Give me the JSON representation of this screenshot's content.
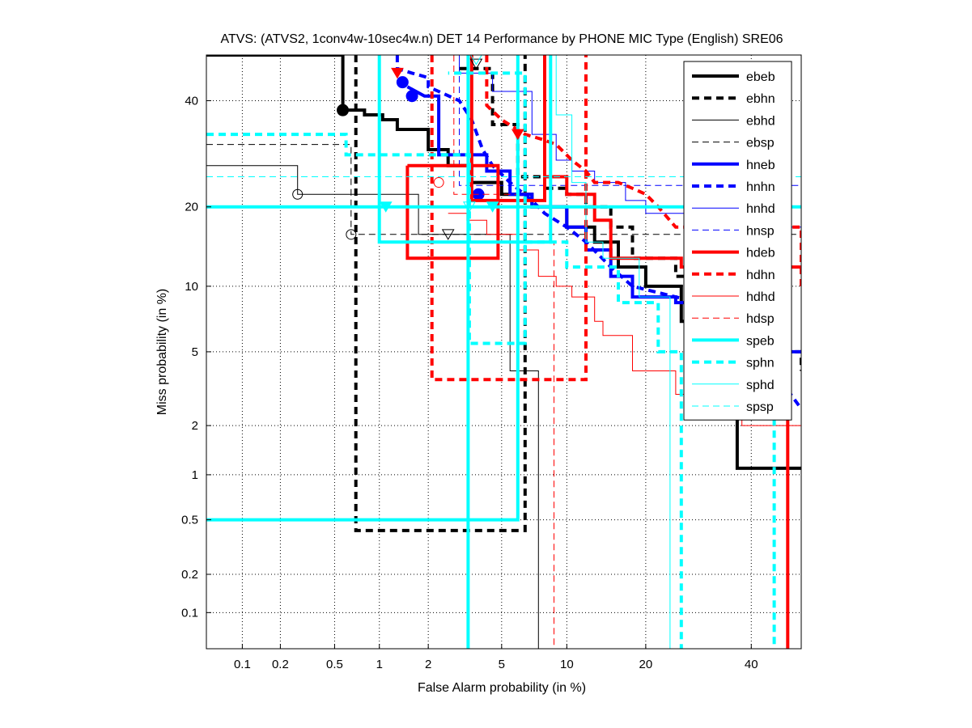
{
  "chart_data": {
    "type": "line",
    "subtype": "DET curve (probit scale)",
    "title": "ATVS: (ATVS2, 1conv4w-10sec4w.n) DET 14 Performance by PHONE MIC Type (English) SRE06",
    "xlabel": "False Alarm probability (in %)",
    "ylabel": "Miss probability (in %)",
    "x_scale": "probit",
    "y_scale": "probit",
    "xlim": [
      0.05,
      51
    ],
    "ylim": [
      0.05,
      50
    ],
    "x_ticks": [
      0.1,
      0.2,
      0.5,
      1,
      2,
      5,
      10,
      20,
      40
    ],
    "x_tick_labels": [
      "0.1",
      "0.2",
      "0.5",
      "1",
      "2",
      "5",
      "10",
      "20",
      "40"
    ],
    "y_ticks": [
      0.1,
      0.2,
      0.5,
      1,
      2,
      5,
      10,
      20,
      40
    ],
    "y_tick_labels": [
      "0.1",
      "0.2",
      "0.5",
      "1",
      "2",
      "5",
      "10",
      "20",
      "40"
    ],
    "grid": true,
    "legend_position": "top-right",
    "colors": {
      "black": "#000000",
      "blue": "#0000ff",
      "red": "#ff0000",
      "cyan": "#00ffff"
    },
    "series": [
      {
        "name": "ebeb",
        "color": "#000000",
        "style": "solid",
        "weight": "thick",
        "points": [
          [
            0.05,
            50
          ],
          [
            0.57,
            50
          ],
          [
            0.57,
            38
          ],
          [
            0.8,
            38
          ],
          [
            0.8,
            37
          ],
          [
            1.05,
            37
          ],
          [
            1.05,
            36
          ],
          [
            1.3,
            36
          ],
          [
            1.3,
            34
          ],
          [
            2.0,
            34
          ],
          [
            2.0,
            30
          ],
          [
            2.6,
            30
          ],
          [
            2.6,
            27
          ],
          [
            3.5,
            27
          ],
          [
            3.5,
            24
          ],
          [
            5,
            24
          ],
          [
            5,
            22
          ],
          [
            7,
            22
          ],
          [
            7,
            20
          ],
          [
            10,
            20
          ],
          [
            10,
            17
          ],
          [
            13,
            17
          ],
          [
            13,
            15
          ],
          [
            16,
            15
          ],
          [
            16,
            12
          ],
          [
            20,
            12
          ],
          [
            20,
            10
          ],
          [
            26,
            10
          ],
          [
            26,
            7
          ],
          [
            32,
            7
          ],
          [
            32,
            2.5
          ],
          [
            37,
            2.5
          ],
          [
            37,
            1.1
          ],
          [
            51,
            1.1
          ]
        ],
        "marker": {
          "x": 0.57,
          "y": 38,
          "shape": "circle-filled"
        }
      },
      {
        "name": "ebhn",
        "color": "#000000",
        "style": "dashed",
        "weight": "thick",
        "points": [
          [
            0.7,
            50
          ],
          [
            0.7,
            0.42
          ],
          [
            6.5,
            0.42
          ],
          [
            6.5,
            50
          ]
        ],
        "points2": [
          [
            3.0,
            47
          ],
          [
            4.5,
            47
          ],
          [
            4.5,
            35
          ],
          [
            6,
            35
          ],
          [
            6,
            25
          ],
          [
            8,
            25
          ],
          [
            8,
            23
          ],
          [
            10,
            23
          ],
          [
            10,
            22
          ],
          [
            12,
            22
          ],
          [
            12,
            20
          ],
          [
            15,
            20
          ],
          [
            15,
            17
          ],
          [
            18,
            17
          ],
          [
            18,
            13
          ],
          [
            25,
            13
          ],
          [
            25,
            11
          ],
          [
            33,
            11
          ],
          [
            33,
            5
          ],
          [
            51,
            5
          ],
          [
            51,
            4
          ]
        ]
      },
      {
        "name": "ebhd",
        "color": "#000000",
        "style": "solid",
        "weight": "thin",
        "points": [
          [
            0.05,
            27
          ],
          [
            0.27,
            27
          ],
          [
            0.27,
            22
          ],
          [
            1.75,
            22
          ],
          [
            1.75,
            16
          ],
          [
            5.5,
            16
          ],
          [
            5.5,
            4
          ],
          [
            7.5,
            4
          ],
          [
            7.5,
            0.05
          ]
        ],
        "marker": {
          "x": 0.27,
          "y": 22,
          "shape": "circle-open"
        }
      },
      {
        "name": "ebsp",
        "color": "#000000",
        "style": "dashed",
        "weight": "thin",
        "points": [
          [
            0.05,
            31
          ],
          [
            0.65,
            31
          ],
          [
            0.65,
            16
          ],
          [
            51,
            16
          ]
        ],
        "marker": {
          "x": 0.65,
          "y": 16,
          "shape": "circle-open"
        }
      },
      {
        "name": "hneb",
        "color": "#0000ff",
        "style": "solid",
        "weight": "thick",
        "points": [
          [
            1.5,
            43
          ],
          [
            1.9,
            41
          ],
          [
            2.3,
            41
          ],
          [
            2.3,
            29
          ],
          [
            4.2,
            29
          ],
          [
            4.2,
            26
          ],
          [
            5.5,
            26
          ],
          [
            5.5,
            22
          ],
          [
            7,
            22
          ],
          [
            7,
            20
          ],
          [
            10,
            20
          ],
          [
            10,
            17
          ],
          [
            12,
            17
          ],
          [
            12,
            14
          ],
          [
            15,
            14
          ],
          [
            15,
            11
          ],
          [
            18,
            11
          ],
          [
            18,
            9
          ],
          [
            25,
            9
          ],
          [
            25,
            8.5
          ],
          [
            35,
            8.5
          ],
          [
            35,
            5
          ],
          [
            51,
            5
          ]
        ],
        "marker": {
          "x": 1.6,
          "y": 41,
          "shape": "circle-filled"
        }
      },
      {
        "name": "hnhn",
        "color": "#0000ff",
        "style": "dashed",
        "weight": "thick",
        "points": [
          [
            1.3,
            50
          ],
          [
            1.3,
            47
          ],
          [
            1.6,
            46
          ],
          [
            2.0,
            45
          ],
          [
            2.0,
            43
          ],
          [
            3.0,
            40
          ],
          [
            3.5,
            36
          ],
          [
            4.0,
            30
          ],
          [
            4.5,
            27
          ],
          [
            5.5,
            24
          ],
          [
            7,
            21
          ],
          [
            8,
            19
          ],
          [
            10,
            17
          ],
          [
            12,
            15
          ],
          [
            15,
            12
          ],
          [
            18,
            10
          ],
          [
            25,
            9
          ],
          [
            35,
            8
          ],
          [
            51,
            2.5
          ]
        ],
        "marker": {
          "x": 3.8,
          "y": 22,
          "shape": "circle-filled"
        }
      },
      {
        "name": "hnhd",
        "color": "#0000ff",
        "style": "solid",
        "weight": "thin",
        "points": [
          [
            3.0,
            50
          ],
          [
            3.0,
            46
          ],
          [
            4.5,
            46
          ],
          [
            4.5,
            42
          ],
          [
            7,
            42
          ],
          [
            7,
            33
          ],
          [
            9,
            33
          ],
          [
            9,
            28
          ],
          [
            10.5,
            28
          ],
          [
            10.5,
            26
          ],
          [
            13,
            26
          ],
          [
            13,
            24
          ],
          [
            17,
            24
          ],
          [
            17,
            21
          ],
          [
            20,
            21
          ],
          [
            20,
            19
          ],
          [
            28,
            19
          ],
          [
            28,
            17
          ],
          [
            51,
            17
          ],
          [
            51,
            11
          ]
        ]
      },
      {
        "name": "hnsp",
        "color": "#0000ff",
        "style": "dashed",
        "weight": "thin",
        "points": [
          [
            3.0,
            50
          ],
          [
            3.0,
            23.5
          ],
          [
            51,
            23.5
          ]
        ]
      },
      {
        "name": "hdeb",
        "color": "#ff0000",
        "style": "solid",
        "weight": "thick",
        "points": [
          [
            1.5,
            27
          ],
          [
            1.5,
            13
          ],
          [
            4.8,
            13
          ],
          [
            4.8,
            27
          ],
          [
            1.5,
            27
          ]
        ],
        "points2": [
          [
            3.5,
            50
          ],
          [
            3.5,
            21
          ],
          [
            8,
            21
          ],
          [
            8,
            50
          ]
        ],
        "points3": [
          [
            8,
            28
          ],
          [
            8,
            25
          ],
          [
            10,
            25
          ],
          [
            10,
            22
          ],
          [
            13,
            22
          ],
          [
            13,
            18
          ],
          [
            15,
            18
          ],
          [
            15,
            13
          ],
          [
            26,
            13
          ],
          [
            26,
            12
          ],
          [
            51,
            12
          ],
          [
            48,
            12
          ],
          [
            48,
            0.05
          ]
        ]
      },
      {
        "name": "hdhn",
        "color": "#ff0000",
        "style": "dashed",
        "weight": "thick",
        "points": [
          [
            2.1,
            50
          ],
          [
            2.1,
            3.6
          ],
          [
            12,
            3.6
          ],
          [
            12,
            50
          ]
        ],
        "points2": [
          [
            4.2,
            50
          ],
          [
            4.2,
            39
          ],
          [
            5,
            36
          ],
          [
            6.5,
            33
          ],
          [
            7.8,
            32
          ],
          [
            9,
            31
          ],
          [
            10.5,
            28
          ],
          [
            12,
            26
          ],
          [
            13,
            24
          ],
          [
            16,
            24
          ],
          [
            18,
            23
          ],
          [
            20,
            22
          ],
          [
            22,
            20
          ],
          [
            25,
            17
          ],
          [
            51,
            17
          ],
          [
            51,
            10
          ]
        ],
        "marker": {
          "x": 1.3,
          "y": 46,
          "shape": "triangle-filled"
        }
      },
      {
        "name": "hdhd",
        "color": "#ff0000",
        "style": "solid",
        "weight": "thin",
        "points": [
          [
            2.6,
            19
          ],
          [
            3.3,
            19
          ],
          [
            3.3,
            18
          ],
          [
            4.2,
            18
          ],
          [
            4.2,
            16
          ],
          [
            6,
            16
          ],
          [
            6,
            14
          ],
          [
            7.5,
            14
          ],
          [
            7.5,
            11
          ],
          [
            9,
            11
          ],
          [
            9,
            10
          ],
          [
            10.5,
            10
          ],
          [
            10.5,
            9
          ],
          [
            13,
            9
          ],
          [
            13,
            7
          ],
          [
            14,
            7
          ],
          [
            14,
            6
          ],
          [
            18,
            6
          ],
          [
            18,
            4
          ],
          [
            25,
            4
          ],
          [
            25,
            3
          ],
          [
            38,
            3
          ],
          [
            38,
            2
          ],
          [
            51,
            2
          ]
        ]
      },
      {
        "name": "hdsp",
        "color": "#ff0000",
        "style": "dashed",
        "weight": "thin",
        "points": [
          [
            2.8,
            50
          ],
          [
            2.8,
            22
          ],
          [
            6,
            22
          ],
          [
            6,
            15
          ],
          [
            8.8,
            15
          ],
          [
            8.8,
            0.05
          ]
        ],
        "marker": {
          "x": 2.3,
          "y": 24,
          "shape": "circle-open"
        }
      },
      {
        "name": "speb",
        "color": "#00ffff",
        "style": "solid",
        "weight": "thick",
        "points": [
          [
            0.05,
            20
          ],
          [
            51,
            20
          ]
        ],
        "points2": [
          [
            1.0,
            50
          ],
          [
            1.0,
            15
          ],
          [
            8.5,
            15
          ],
          [
            8.5,
            50
          ]
        ],
        "points3": [
          [
            0.05,
            0.5
          ],
          [
            6.0,
            0.5
          ],
          [
            6.0,
            50
          ]
        ],
        "points4": [
          [
            3.35,
            50
          ],
          [
            3.35,
            0.05
          ]
        ],
        "marker": {
          "x": 1.1,
          "y": 20,
          "shape": "triangle-filled"
        }
      },
      {
        "name": "sphn",
        "color": "#00ffff",
        "style": "dashed",
        "weight": "thick",
        "points": [
          [
            0.05,
            33
          ],
          [
            0.6,
            33
          ],
          [
            0.6,
            29
          ],
          [
            3.4,
            29
          ],
          [
            3.4,
            5.5
          ],
          [
            6.5,
            5.5
          ],
          [
            6.5,
            46
          ],
          [
            2.6,
            46
          ]
        ],
        "points2": [
          [
            6.5,
            15
          ],
          [
            10,
            15
          ],
          [
            10,
            12
          ],
          [
            16,
            12
          ],
          [
            16,
            8.5
          ],
          [
            22,
            8.5
          ],
          [
            22,
            5
          ],
          [
            26,
            5
          ],
          [
            26,
            0.05
          ]
        ],
        "points3": [
          [
            45,
            2.2
          ],
          [
            45,
            0.05
          ]
        ]
      },
      {
        "name": "sphd",
        "color": "#00ffff",
        "style": "solid",
        "weight": "thin",
        "points": [
          [
            9,
            50
          ],
          [
            9,
            37
          ],
          [
            10.5,
            37
          ],
          [
            10.5,
            24
          ],
          [
            12,
            24
          ],
          [
            12,
            15
          ],
          [
            14,
            15
          ],
          [
            14,
            13
          ],
          [
            19,
            13
          ],
          [
            19,
            9
          ],
          [
            24,
            9
          ],
          [
            24,
            0.05
          ]
        ]
      },
      {
        "name": "spsp",
        "color": "#00ffff",
        "style": "dashed",
        "weight": "thin",
        "points": [
          [
            0.05,
            25
          ],
          [
            51,
            25
          ]
        ],
        "marker": {
          "x": 3.4,
          "y": 20,
          "shape": "triangle-open"
        }
      }
    ],
    "extra_markers": [
      {
        "series": "ebsp",
        "x": 2.6,
        "y": 16,
        "shape": "triangle-open",
        "color": "#000000"
      },
      {
        "series": "ebhd",
        "x": 3.7,
        "y": 48,
        "shape": "triangle-open",
        "color": "#000000"
      },
      {
        "series": "spsp",
        "x": 3.7,
        "y": 49,
        "shape": "triangle-open",
        "color": "#00ffff"
      },
      {
        "series": "speb",
        "x": 4.5,
        "y": 20,
        "shape": "triangle-filled",
        "color": "#00ffff"
      },
      {
        "series": "hdeb",
        "x": 6.0,
        "y": 33,
        "shape": "triangle-filled",
        "color": "#ff0000"
      },
      {
        "series": "hneb",
        "x": 1.4,
        "y": 44,
        "shape": "circle-filled",
        "color": "#0000ff"
      }
    ]
  }
}
